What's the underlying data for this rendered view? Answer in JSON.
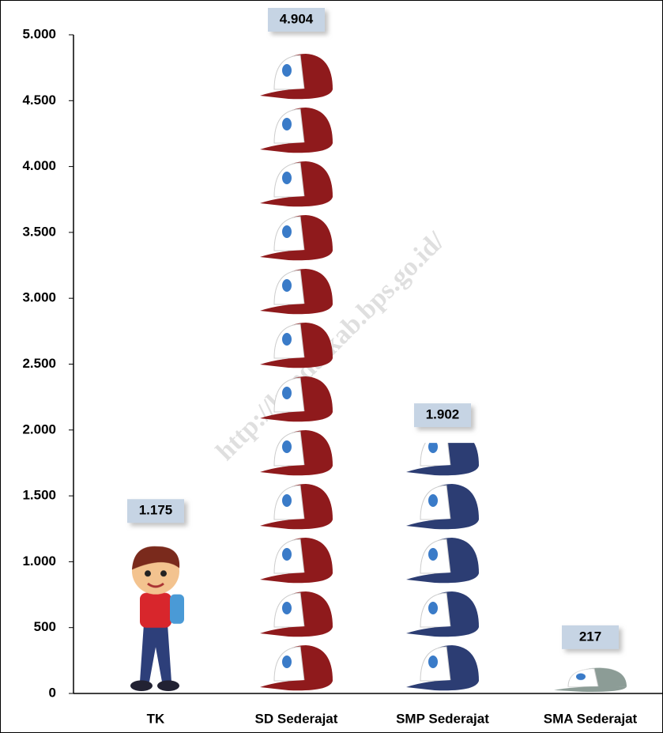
{
  "chart_data": {
    "type": "pictograph",
    "watermark": "http://kendalkab.bps.go.id/",
    "categories": [
      "TK",
      "SD Sederajat",
      "SMP Sederajat",
      "SMA Sederajat"
    ],
    "values": [
      1175,
      4904,
      1902,
      217
    ],
    "value_labels": [
      "1.175",
      "4.904",
      "1.902",
      "217"
    ],
    "colors": [
      "#d8262c",
      "#8f1a1c",
      "#2c3d73",
      "#8c9c96"
    ],
    "ylim": [
      0,
      5000
    ],
    "yticks": [
      0,
      500,
      {
        "value": 1000,
        "label": "1.000"
      },
      {
        "value": 1500,
        "label": "1.500"
      },
      {
        "value": 2000,
        "label": "2.000"
      },
      {
        "value": 2500,
        "label": "2.500"
      },
      {
        "value": 3000,
        "label": "3.000"
      },
      {
        "value": 3500,
        "label": "3.500"
      },
      {
        "value": 4000,
        "label": "4.000"
      },
      {
        "value": 4500,
        "label": "4.500"
      },
      {
        "value": 5000,
        "label": "5.000"
      }
    ]
  }
}
